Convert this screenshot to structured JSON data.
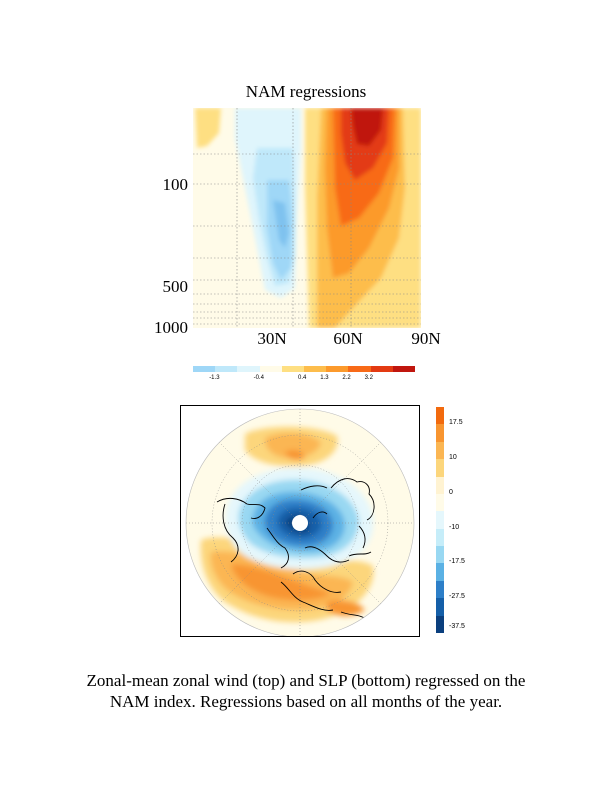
{
  "chart_data": [
    {
      "type": "heatmap",
      "title": "NAM regressions",
      "xlabel": "",
      "ylabel": "",
      "x_ticks": [
        "30N",
        "60N",
        "90N"
      ],
      "y_ticks": [
        "100",
        "500",
        "1000"
      ],
      "colorbar": {
        "ticks": [
          "-1.3",
          "-0.4",
          "0.4",
          "1.3",
          "2.2",
          "3.2"
        ],
        "colors": [
          "#9fd7f7",
          "#bfe8fa",
          "#dff5fc",
          "#fffbe8",
          "#fedf82",
          "#fdbd4c",
          "#fc9a2c",
          "#f86a18",
          "#e33a12",
          "#c0160e"
        ]
      },
      "features": [
        {
          "name": "negative-lobe",
          "lat_range": [
            10,
            48
          ],
          "pressure_range": [
            20,
            800
          ],
          "peak": -1.3
        },
        {
          "name": "jet-positive-core",
          "lat_range": [
            50,
            78
          ],
          "pressure_range": [
            10,
            1000
          ],
          "peak": 3.2
        }
      ]
    },
    {
      "type": "heatmap",
      "title": "",
      "projection": "north-polar-stereographic",
      "colorbar": {
        "ticks": [
          "17.5",
          "10",
          "0",
          "-10",
          "-17.5",
          "-27.5",
          "-37.5"
        ],
        "colors": [
          "#f26a0e",
          "#f89530",
          "#fbb653",
          "#fcd67c",
          "#fff3d2",
          "#fffbe8",
          "#e5f7fc",
          "#c6edf9",
          "#99d8f2",
          "#5bb1e4",
          "#2d7fc8",
          "#155fa8",
          "#0b3f7e"
        ]
      },
      "features": [
        {
          "name": "arctic-low",
          "sign": "negative",
          "peak": -37.5
        },
        {
          "name": "atlantic-high",
          "sign": "positive",
          "peak": 17.5
        },
        {
          "name": "pacific-high",
          "sign": "positive",
          "peak": 10
        }
      ]
    }
  ],
  "caption": {
    "line1": "Zonal-mean zonal wind (top) and SLP (bottom) regressed on the",
    "line2": "NAM index. Regressions based on all months of the year."
  }
}
